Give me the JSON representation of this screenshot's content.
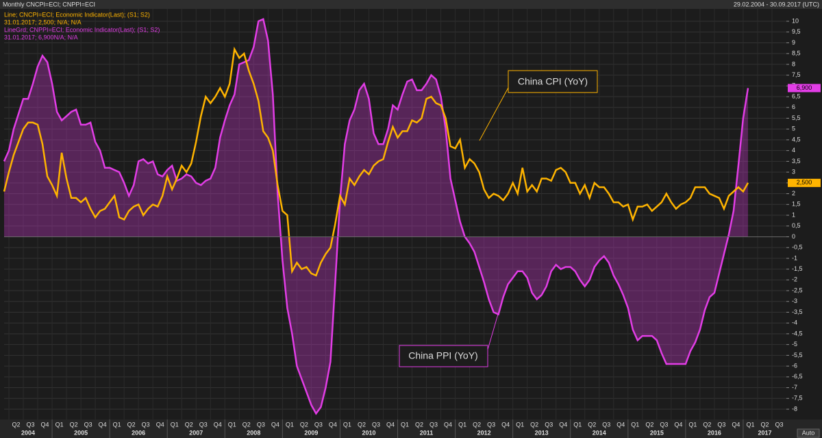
{
  "chart_data": {
    "type": "line",
    "title": "Monthly CNCPI=ECI; CNPPI=ECI",
    "date_range": "29.02.2004 - 30.09.2017 (UTC)",
    "legend_lines": [
      "Line; CNCPI=ECI; Economic Indicator(Last); (S1; S2)",
      "31.01.2017; 2,500; N/A; N/A",
      "LineGrd; CNPPI=ECI; Economic Indicator(Last); (S1; S2)",
      "31.01.2017; 6,900N/A; N/A"
    ],
    "annotations": [
      "China CPI (YoY)",
      "China PPI (YoY)"
    ],
    "auto_button": "Auto",
    "xlim": [
      "2004-02",
      "2017-09"
    ],
    "x": [
      "2004-02",
      "2004-03",
      "2004-04",
      "2004-05",
      "2004-06",
      "2004-07",
      "2004-08",
      "2004-09",
      "2004-10",
      "2004-11",
      "2004-12",
      "2005-01",
      "2005-02",
      "2005-03",
      "2005-04",
      "2005-05",
      "2005-06",
      "2005-07",
      "2005-08",
      "2005-09",
      "2005-10",
      "2005-11",
      "2005-12",
      "2006-01",
      "2006-02",
      "2006-03",
      "2006-04",
      "2006-05",
      "2006-06",
      "2006-07",
      "2006-08",
      "2006-09",
      "2006-10",
      "2006-11",
      "2006-12",
      "2007-01",
      "2007-02",
      "2007-03",
      "2007-04",
      "2007-05",
      "2007-06",
      "2007-07",
      "2007-08",
      "2007-09",
      "2007-10",
      "2007-11",
      "2007-12",
      "2008-01",
      "2008-02",
      "2008-03",
      "2008-04",
      "2008-05",
      "2008-06",
      "2008-07",
      "2008-08",
      "2008-09",
      "2008-10",
      "2008-11",
      "2008-12",
      "2009-01",
      "2009-02",
      "2009-03",
      "2009-04",
      "2009-05",
      "2009-06",
      "2009-07",
      "2009-08",
      "2009-09",
      "2009-10",
      "2009-11",
      "2009-12",
      "2010-01",
      "2010-02",
      "2010-03",
      "2010-04",
      "2010-05",
      "2010-06",
      "2010-07",
      "2010-08",
      "2010-09",
      "2010-10",
      "2010-11",
      "2010-12",
      "2011-01",
      "2011-02",
      "2011-03",
      "2011-04",
      "2011-05",
      "2011-06",
      "2011-07",
      "2011-08",
      "2011-09",
      "2011-10",
      "2011-11",
      "2011-12",
      "2012-01",
      "2012-02",
      "2012-03",
      "2012-04",
      "2012-05",
      "2012-06",
      "2012-07",
      "2012-08",
      "2012-09",
      "2012-10",
      "2012-11",
      "2012-12",
      "2013-01",
      "2013-02",
      "2013-03",
      "2013-04",
      "2013-05",
      "2013-06",
      "2013-07",
      "2013-08",
      "2013-09",
      "2013-10",
      "2013-11",
      "2013-12",
      "2014-01",
      "2014-02",
      "2014-03",
      "2014-04",
      "2014-05",
      "2014-06",
      "2014-07",
      "2014-08",
      "2014-09",
      "2014-10",
      "2014-11",
      "2014-12",
      "2015-01",
      "2015-02",
      "2015-03",
      "2015-04",
      "2015-05",
      "2015-06",
      "2015-07",
      "2015-08",
      "2015-09",
      "2015-10",
      "2015-11",
      "2015-12",
      "2016-01",
      "2016-02",
      "2016-03",
      "2016-04",
      "2016-05",
      "2016-06",
      "2016-07",
      "2016-08",
      "2016-09",
      "2016-10",
      "2016-11",
      "2016-12",
      "2017-01"
    ],
    "series": [
      {
        "name": "China PPI (YoY)",
        "color": "#e23de6",
        "fill": true,
        "last_label": "6,900",
        "values": [
          3.5,
          4.0,
          5.0,
          5.7,
          6.4,
          6.4,
          7.1,
          7.9,
          8.4,
          8.1,
          7.1,
          5.8,
          5.4,
          5.6,
          5.8,
          5.9,
          5.2,
          5.2,
          5.3,
          4.4,
          4.0,
          3.2,
          3.2,
          3.1,
          3.0,
          2.5,
          1.9,
          2.4,
          3.5,
          3.6,
          3.4,
          3.5,
          2.9,
          2.8,
          3.1,
          3.3,
          2.6,
          2.7,
          2.9,
          2.8,
          2.5,
          2.4,
          2.6,
          2.7,
          3.2,
          4.6,
          5.4,
          6.1,
          6.6,
          8.0,
          8.1,
          8.2,
          8.8,
          10.0,
          10.1,
          9.1,
          6.6,
          2.0,
          -1.1,
          -3.3,
          -4.5,
          -6.0,
          -6.6,
          -7.2,
          -7.8,
          -8.2,
          -7.9,
          -7.0,
          -5.8,
          -2.1,
          1.7,
          4.3,
          5.4,
          5.9,
          6.8,
          7.1,
          6.4,
          4.8,
          4.3,
          4.3,
          5.0,
          6.1,
          5.9,
          6.6,
          7.2,
          7.3,
          6.8,
          6.8,
          7.1,
          7.5,
          7.3,
          6.5,
          5.0,
          2.7,
          1.7,
          0.7,
          0.0,
          -0.3,
          -0.7,
          -1.4,
          -2.1,
          -2.9,
          -3.5,
          -3.6,
          -2.8,
          -2.2,
          -1.9,
          -1.6,
          -1.6,
          -1.9,
          -2.6,
          -2.9,
          -2.7,
          -2.3,
          -1.6,
          -1.3,
          -1.5,
          -1.4,
          -1.4,
          -1.6,
          -2.0,
          -2.3,
          -2.0,
          -1.4,
          -1.1,
          -0.9,
          -1.2,
          -1.8,
          -2.2,
          -2.7,
          -3.3,
          -4.3,
          -4.8,
          -4.6,
          -4.6,
          -4.6,
          -4.8,
          -5.4,
          -5.9,
          -5.9,
          -5.9,
          -5.9,
          -5.9,
          -5.3,
          -4.9,
          -4.3,
          -3.4,
          -2.8,
          -2.6,
          -1.7,
          -0.8,
          0.1,
          1.2,
          3.3,
          5.5,
          6.9
        ]
      },
      {
        "name": "China CPI (YoY)",
        "color": "#ffb400",
        "fill": false,
        "last_label": "2,500",
        "values": [
          2.1,
          3.0,
          3.8,
          4.4,
          5.0,
          5.3,
          5.3,
          5.2,
          4.3,
          2.8,
          2.4,
          1.9,
          3.9,
          2.7,
          1.8,
          1.8,
          1.6,
          1.8,
          1.3,
          0.9,
          1.2,
          1.3,
          1.6,
          1.9,
          0.9,
          0.8,
          1.2,
          1.4,
          1.5,
          1.0,
          1.3,
          1.5,
          1.4,
          1.9,
          2.8,
          2.2,
          2.7,
          3.3,
          3.0,
          3.4,
          4.4,
          5.6,
          6.5,
          6.2,
          6.5,
          6.9,
          6.5,
          7.1,
          8.7,
          8.3,
          8.5,
          7.7,
          7.1,
          6.3,
          4.9,
          4.6,
          4.0,
          2.4,
          1.2,
          1.0,
          -1.6,
          -1.2,
          -1.5,
          -1.4,
          -1.7,
          -1.8,
          -1.2,
          -0.8,
          -0.5,
          0.6,
          1.9,
          1.5,
          2.7,
          2.4,
          2.8,
          3.1,
          2.9,
          3.3,
          3.5,
          3.6,
          4.4,
          5.1,
          4.6,
          4.9,
          4.9,
          5.4,
          5.3,
          5.5,
          6.4,
          6.5,
          6.2,
          6.1,
          5.5,
          4.2,
          4.1,
          4.5,
          3.2,
          3.6,
          3.4,
          3.0,
          2.2,
          1.8,
          2.0,
          1.9,
          1.7,
          2.0,
          2.5,
          2.0,
          3.2,
          2.1,
          2.4,
          2.1,
          2.7,
          2.7,
          2.6,
          3.1,
          3.2,
          3.0,
          2.5,
          2.5,
          2.0,
          2.4,
          1.8,
          2.5,
          2.3,
          2.3,
          2.0,
          1.6,
          1.6,
          1.4,
          1.5,
          0.8,
          1.4,
          1.4,
          1.5,
          1.2,
          1.4,
          1.6,
          2.0,
          1.6,
          1.3,
          1.5,
          1.6,
          1.8,
          2.3,
          2.3,
          2.3,
          2.0,
          1.9,
          1.8,
          1.3,
          1.9,
          2.1,
          2.3,
          2.1,
          2.5
        ]
      }
    ],
    "ylim": [
      -8,
      10
    ],
    "yticks": [
      10,
      {
        "value": 9.5,
        "label": "9,5"
      },
      9,
      {
        "value": 8.5,
        "label": "8,5"
      },
      8,
      {
        "value": 7.5,
        "label": "7,5"
      },
      7,
      {
        "value": 6.5,
        "label": "6,5"
      },
      6,
      {
        "value": 5.5,
        "label": "5,5"
      },
      5,
      {
        "value": 4.5,
        "label": "4,5"
      },
      4,
      {
        "value": 3.5,
        "label": "3,5"
      },
      3,
      {
        "value": 2.5,
        "label": "2,5"
      },
      2,
      {
        "value": 1.5,
        "label": "1,5"
      },
      1,
      {
        "value": 0.5,
        "label": "0,5"
      },
      0,
      {
        "value": -0.5,
        "label": "-0,5"
      },
      -1,
      {
        "value": -1.5,
        "label": "-1,5"
      },
      -2,
      {
        "value": -2.5,
        "label": "-2,5"
      },
      -3,
      {
        "value": -3.5,
        "label": "-3,5"
      },
      -4,
      {
        "value": -4.5,
        "label": "-4,5"
      },
      -5,
      {
        "value": -5.5,
        "label": "-5,5"
      },
      -6,
      {
        "value": -6.5,
        "label": "-6,5"
      },
      -7,
      {
        "value": -7.5,
        "label": "-7,5"
      },
      -8
    ],
    "quarter_labels": [
      "Q2",
      "Q3",
      "Q4",
      "Q1",
      "Q2",
      "Q3",
      "Q4",
      "Q1",
      "Q2",
      "Q3",
      "Q4",
      "Q1",
      "Q2",
      "Q3",
      "Q4",
      "Q1",
      "Q2",
      "Q3",
      "Q4",
      "Q1",
      "Q2",
      "Q3",
      "Q4",
      "Q1",
      "Q2",
      "Q3",
      "Q4",
      "Q1",
      "Q2",
      "Q3",
      "Q4",
      "Q1",
      "Q2",
      "Q3",
      "Q4",
      "Q1",
      "Q2",
      "Q3",
      "Q4",
      "Q1",
      "Q2",
      "Q3",
      "Q4",
      "Q1",
      "Q2",
      "Q3",
      "Q4",
      "Q1",
      "Q2",
      "Q3",
      "Q4",
      "Q1",
      "Q2",
      "Q3"
    ],
    "year_labels": [
      "2004",
      "2005",
      "2006",
      "2007",
      "2008",
      "2009",
      "2010",
      "2011",
      "2012",
      "2013",
      "2014",
      "2015",
      "2016",
      "2017"
    ],
    "grid": true
  }
}
